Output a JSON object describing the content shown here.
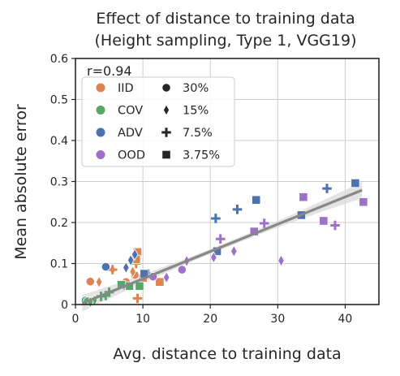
{
  "chart_data": {
    "type": "scatter",
    "title": "Effect of distance to training data",
    "subtitle": "(Height sampling, Type 1, VGG19)",
    "xlabel": "Avg. distance to training data",
    "ylabel": "Mean absolute error",
    "xlim": [
      0,
      45
    ],
    "ylim": [
      0,
      0.6
    ],
    "xticks": [
      0,
      10,
      20,
      30,
      40
    ],
    "yticks": [
      0,
      0.1,
      0.2,
      0.3,
      0.4,
      0.5,
      0.6
    ],
    "xtick_labels": [
      "0",
      "10",
      "20",
      "30",
      "40"
    ],
    "ytick_labels": [
      "0",
      "0.1",
      "0.2",
      "0.3",
      "0.4",
      "0.5",
      "0.6"
    ],
    "grid": true,
    "annotation": "r=0.94",
    "legend_placement": "top-left",
    "hue_legend": [
      {
        "label": "IID",
        "color": "#dd8452"
      },
      {
        "label": "COV",
        "color": "#55a868"
      },
      {
        "label": "ADV",
        "color": "#4c72b0"
      },
      {
        "label": "OOD",
        "color": "#9d71c8"
      }
    ],
    "style_legend": [
      {
        "label": "30%",
        "marker": "circle"
      },
      {
        "label": "15%",
        "marker": "diamond"
      },
      {
        "label": "7.5%",
        "marker": "plus"
      },
      {
        "label": "3.75%",
        "marker": "square"
      }
    ],
    "regression": {
      "x": [
        1,
        42.5
      ],
      "y": [
        0.003,
        0.279
      ],
      "ci_color": "#d9d9d9",
      "line_color": "#888888"
    },
    "points": [
      {
        "group": "IID",
        "marker": "circle",
        "x": 2.2,
        "y": 0.056
      },
      {
        "group": "IID",
        "marker": "circle",
        "x": 7.5,
        "y": 0.055
      },
      {
        "group": "IID",
        "marker": "circle",
        "x": 8.8,
        "y": 0.072
      },
      {
        "group": "IID",
        "marker": "diamond",
        "x": 3.5,
        "y": 0.055
      },
      {
        "group": "IID",
        "marker": "diamond",
        "x": 5.5,
        "y": 0.085
      },
      {
        "group": "IID",
        "marker": "diamond",
        "x": 8.5,
        "y": 0.08
      },
      {
        "group": "IID",
        "marker": "plus",
        "x": 5.5,
        "y": 0.085
      },
      {
        "group": "IID",
        "marker": "plus",
        "x": 7.2,
        "y": 0.047
      },
      {
        "group": "IID",
        "marker": "plus",
        "x": 9.2,
        "y": 0.015
      },
      {
        "group": "IID",
        "marker": "plus",
        "x": 9.0,
        "y": 0.1
      },
      {
        "group": "IID",
        "marker": "square",
        "x": 9.2,
        "y": 0.128
      },
      {
        "group": "IID",
        "marker": "square",
        "x": 9.0,
        "y": 0.11
      },
      {
        "group": "IID",
        "marker": "square",
        "x": 10.0,
        "y": 0.065
      },
      {
        "group": "IID",
        "marker": "square",
        "x": 12.5,
        "y": 0.055
      },
      {
        "group": "COV",
        "marker": "circle",
        "x": 1.5,
        "y": 0.01
      },
      {
        "group": "COV",
        "marker": "circle",
        "x": 1.8,
        "y": 0.008
      },
      {
        "group": "COV",
        "marker": "diamond",
        "x": 2.8,
        "y": 0.01
      },
      {
        "group": "COV",
        "marker": "diamond",
        "x": 2.2,
        "y": 0.006
      },
      {
        "group": "COV",
        "marker": "plus",
        "x": 3.8,
        "y": 0.02
      },
      {
        "group": "COV",
        "marker": "plus",
        "x": 4.5,
        "y": 0.022
      },
      {
        "group": "COV",
        "marker": "plus",
        "x": 5.0,
        "y": 0.03
      },
      {
        "group": "COV",
        "marker": "square",
        "x": 8.0,
        "y": 0.045
      },
      {
        "group": "COV",
        "marker": "square",
        "x": 9.5,
        "y": 0.045
      },
      {
        "group": "COV",
        "marker": "square",
        "x": 6.8,
        "y": 0.048
      },
      {
        "group": "ADV",
        "marker": "circle",
        "x": 4.5,
        "y": 0.092
      },
      {
        "group": "ADV",
        "marker": "diamond",
        "x": 7.5,
        "y": 0.09
      },
      {
        "group": "ADV",
        "marker": "diamond",
        "x": 8.2,
        "y": 0.108
      },
      {
        "group": "ADV",
        "marker": "diamond",
        "x": 8.8,
        "y": 0.122
      },
      {
        "group": "ADV",
        "marker": "plus",
        "x": 10.8,
        "y": 0.075
      },
      {
        "group": "ADV",
        "marker": "plus",
        "x": 20.8,
        "y": 0.21
      },
      {
        "group": "ADV",
        "marker": "plus",
        "x": 24.0,
        "y": 0.232
      },
      {
        "group": "ADV",
        "marker": "plus",
        "x": 37.3,
        "y": 0.283
      },
      {
        "group": "ADV",
        "marker": "square",
        "x": 10.2,
        "y": 0.075
      },
      {
        "group": "ADV",
        "marker": "square",
        "x": 21.0,
        "y": 0.13
      },
      {
        "group": "ADV",
        "marker": "square",
        "x": 26.8,
        "y": 0.255
      },
      {
        "group": "ADV",
        "marker": "square",
        "x": 33.5,
        "y": 0.218
      },
      {
        "group": "ADV",
        "marker": "square",
        "x": 41.5,
        "y": 0.296
      },
      {
        "group": "OOD",
        "marker": "circle",
        "x": 15.8,
        "y": 0.085
      },
      {
        "group": "OOD",
        "marker": "circle",
        "x": 11.5,
        "y": 0.068
      },
      {
        "group": "OOD",
        "marker": "diamond",
        "x": 13.5,
        "y": 0.066
      },
      {
        "group": "OOD",
        "marker": "diamond",
        "x": 16.5,
        "y": 0.106
      },
      {
        "group": "OOD",
        "marker": "diamond",
        "x": 20.5,
        "y": 0.115
      },
      {
        "group": "OOD",
        "marker": "diamond",
        "x": 23.5,
        "y": 0.13
      },
      {
        "group": "OOD",
        "marker": "diamond",
        "x": 30.5,
        "y": 0.107
      },
      {
        "group": "OOD",
        "marker": "plus",
        "x": 21.5,
        "y": 0.16
      },
      {
        "group": "OOD",
        "marker": "plus",
        "x": 28.0,
        "y": 0.198
      },
      {
        "group": "OOD",
        "marker": "plus",
        "x": 38.5,
        "y": 0.193
      },
      {
        "group": "OOD",
        "marker": "square",
        "x": 26.5,
        "y": 0.178
      },
      {
        "group": "OOD",
        "marker": "square",
        "x": 33.8,
        "y": 0.262
      },
      {
        "group": "OOD",
        "marker": "square",
        "x": 36.8,
        "y": 0.204
      },
      {
        "group": "OOD",
        "marker": "square",
        "x": 42.7,
        "y": 0.25
      }
    ]
  }
}
